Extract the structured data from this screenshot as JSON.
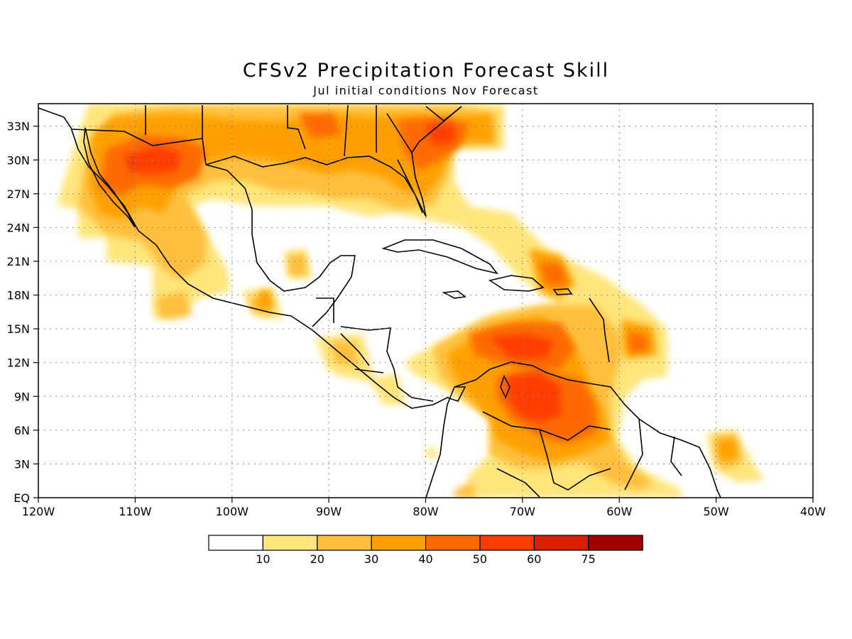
{
  "title": "CFSv2 Precipitation Forecast Skill",
  "subtitle": "Jul initial conditions   Nov Forecast",
  "map": {
    "lon_range": [
      -120,
      -40
    ],
    "lat_range": [
      0,
      35
    ],
    "lon_ticks": [
      "120W",
      "110W",
      "100W",
      "90W",
      "80W",
      "70W",
      "60W",
      "50W",
      "40W"
    ],
    "lat_ticks": [
      "EQ",
      "3N",
      "6N",
      "9N",
      "12N",
      "15N",
      "18N",
      "21N",
      "24N",
      "27N",
      "30N",
      "33N"
    ],
    "grid": true
  },
  "legend": {
    "labels": [
      "10",
      "20",
      "30",
      "40",
      "50",
      "60",
      "75"
    ],
    "colors": [
      "#ffffff",
      "#ffe57a",
      "#ffbf3c",
      "#ffa000",
      "#ff6a00",
      "#ff3c00",
      "#dc1e00",
      "#a00000"
    ]
  }
}
